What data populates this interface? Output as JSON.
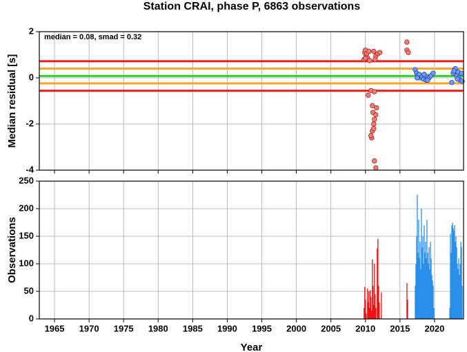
{
  "chart_data": [
    {
      "type": "scatter",
      "title": "Station CRAI, phase P, 6863 observations",
      "annotation": "median = 0.08, smad = 0.32",
      "ylabel": "Median residual [s]",
      "xlim": [
        1962.8,
        2024.2
      ],
      "xticks": [
        1965,
        1970,
        1975,
        1980,
        1985,
        1990,
        1995,
        2000,
        2005,
        2010,
        2015,
        2020
      ],
      "xtick_labels": false,
      "ylim": [
        -4,
        2
      ],
      "yticks": [
        -4,
        -2,
        0,
        2
      ],
      "grid": true,
      "hlines": [
        {
          "value": 0.72,
          "color": "#f01818"
        },
        {
          "value": -0.56,
          "color": "#f01818"
        },
        {
          "value": 0.4,
          "color": "#f5a623"
        },
        {
          "value": -0.24,
          "color": "#f5a623"
        },
        {
          "value": 0.08,
          "color": "#2fd22f"
        }
      ],
      "series": [
        {
          "color": "#f47a72",
          "edgecolor": "#9a2c2c",
          "x": [
            2009.9,
            2010.0,
            2010.1,
            2009.8,
            2010.2,
            2010.3,
            2010.5,
            2010.6,
            2010.0,
            2011.2,
            2011.5,
            2011.8,
            2012.1,
            2011.4,
            2010.4,
            2010.8,
            2011.3,
            2011.0,
            2011.1,
            2011.3,
            2011.2,
            2011.0,
            2011.2,
            2010.9,
            2010.8,
            2011.5,
            2011.6,
            2011.3,
            2011.5,
            2016.0,
            2016.0,
            2016.2
          ],
          "y": [
            1.1,
            1.2,
            0.95,
            0.8,
            1.05,
            0.85,
            1.15,
            0.75,
            0.85,
            1.15,
            0.95,
            1.05,
            1.1,
            0.8,
            -0.75,
            -0.55,
            -0.6,
            -1.2,
            -1.5,
            -1.8,
            -2.0,
            -2.3,
            -2.2,
            -2.6,
            -2.5,
            -1.6,
            -1.3,
            -3.6,
            -3.9,
            1.55,
            1.2,
            1.1
          ]
        },
        {
          "color": "#6f9cf0",
          "edgecolor": "#2a48a8",
          "x": [
            2017.2,
            2017.4,
            2017.6,
            2017.8,
            2018.0,
            2018.2,
            2018.4,
            2018.6,
            2018.8,
            2019.0,
            2019.2,
            2019.5,
            2019.8,
            2017.5,
            2018.5,
            2019.0,
            2022.5,
            2022.7,
            2022.9,
            2023.0,
            2023.2,
            2023.4,
            2023.5,
            2023.7,
            2023.9,
            2024.0,
            2023.3,
            2022.8
          ],
          "y": [
            0.35,
            0.2,
            0.1,
            0.15,
            0.0,
            0.05,
            -0.05,
            0.1,
            -0.1,
            0.05,
            0.0,
            0.1,
            0.2,
            0.0,
            0.15,
            -0.1,
            -0.2,
            0.2,
            0.35,
            0.4,
            0.1,
            0.25,
            0.0,
            -0.1,
            0.2,
            -0.15,
            -0.05,
            0.3
          ]
        }
      ]
    },
    {
      "type": "bar",
      "ylabel": "Observations",
      "xlabel": "Year",
      "xlim": [
        1962.8,
        2024.2
      ],
      "xticks": [
        1965,
        1970,
        1975,
        1980,
        1985,
        1990,
        1995,
        2000,
        2005,
        2010,
        2015,
        2020
      ],
      "xtick_labels": true,
      "ylim": [
        0,
        250
      ],
      "yticks": [
        0,
        50,
        100,
        150,
        200,
        250
      ],
      "grid": true,
      "series": [
        {
          "color": "#ee1111",
          "x": [
            2009.8,
            2009.9,
            2010.0,
            2010.1,
            2010.3,
            2010.4,
            2010.5,
            2010.6,
            2010.7,
            2010.8,
            2010.9,
            2011.0,
            2011.1,
            2011.2,
            2011.3,
            2011.4,
            2011.5,
            2011.7,
            2011.8,
            2011.9,
            2012.0,
            2012.3,
            2016.0,
            2016.1
          ],
          "values": [
            20,
            58,
            35,
            10,
            55,
            30,
            50,
            20,
            52,
            40,
            15,
            108,
            60,
            25,
            100,
            45,
            20,
            128,
            145,
            60,
            30,
            48,
            65,
            35
          ]
        },
        {
          "color": "#2a8fe8",
          "x": [
            2017.2,
            2017.3,
            2017.4,
            2017.5,
            2017.6,
            2017.7,
            2017.8,
            2017.9,
            2018.0,
            2018.1,
            2018.2,
            2018.3,
            2018.4,
            2018.5,
            2018.6,
            2018.7,
            2018.8,
            2018.9,
            2019.0,
            2019.1,
            2019.2,
            2019.3,
            2019.4,
            2019.5,
            2019.6,
            2019.7,
            2019.8,
            2019.9,
            2022.2,
            2022.3,
            2022.4,
            2022.5,
            2022.6,
            2022.7,
            2022.8,
            2022.9,
            2023.0,
            2023.1,
            2023.2,
            2023.3,
            2023.4,
            2023.5,
            2023.6,
            2023.7,
            2023.8,
            2023.9,
            2024.0
          ],
          "values": [
            60,
            100,
            150,
            225,
            120,
            180,
            110,
            140,
            90,
            200,
            130,
            150,
            100,
            170,
            120,
            140,
            110,
            180,
            120,
            100,
            130,
            90,
            140,
            110,
            80,
            70,
            60,
            20,
            20,
            155,
            120,
            170,
            175,
            165,
            160,
            170,
            140,
            150,
            130,
            100,
            90,
            110,
            80,
            100,
            140,
            130,
            60
          ]
        }
      ]
    }
  ]
}
